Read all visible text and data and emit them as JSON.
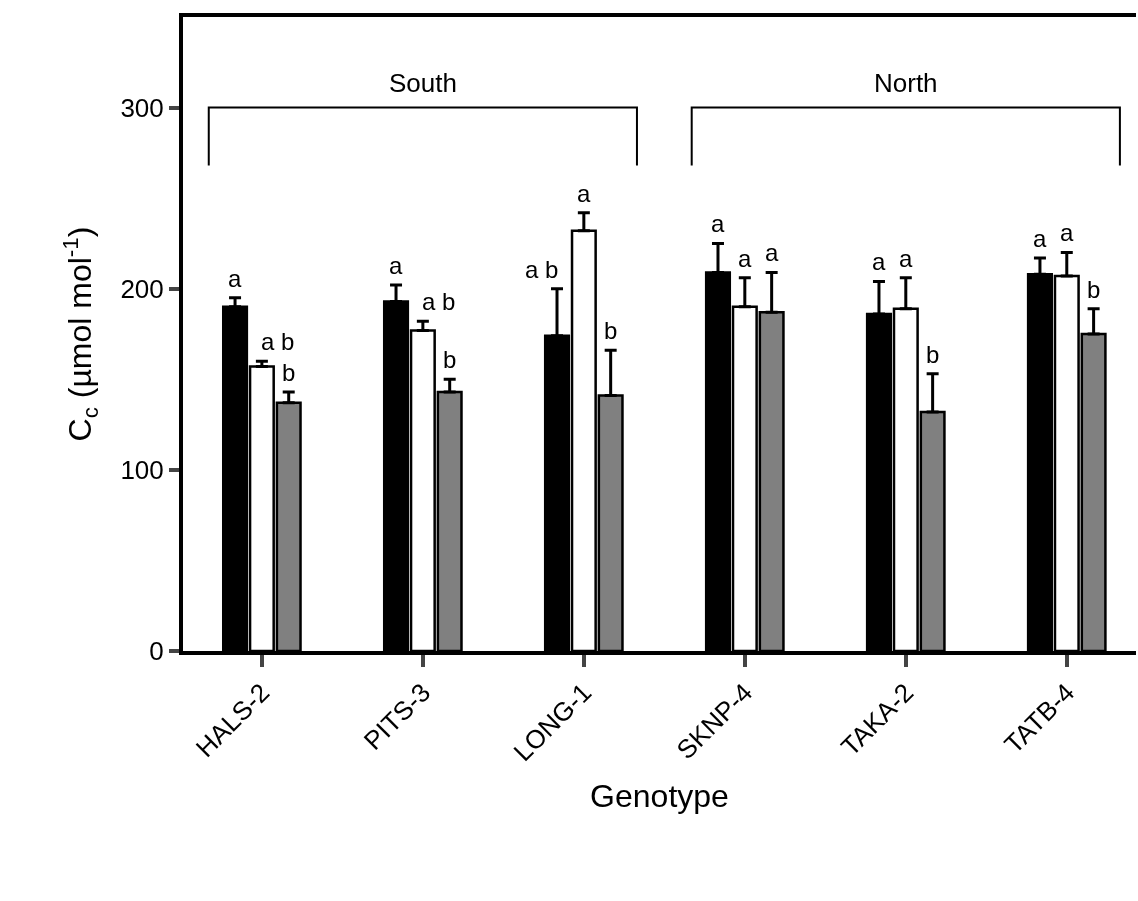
{
  "chart_data": {
    "type": "bar",
    "xlabel": "Genotype",
    "ylabel": "C$_{c}$ (µmol mol$^{-1}$)",
    "categories": [
      "HALS-2",
      "PITS-3",
      "LONG-1",
      "SKNP-4",
      "TAKA-2",
      "TATB-4"
    ],
    "series": [
      {
        "color": "#000000",
        "values": [
          190,
          193,
          174,
          209,
          186,
          208
        ],
        "errors": [
          [
            190,
            195
          ],
          [
            193,
            202
          ],
          [
            174,
            200
          ],
          [
            209,
            225
          ],
          [
            186,
            204
          ],
          [
            208,
            217
          ]
        ],
        "value_labels": [
          "a",
          "a",
          "a b",
          "a",
          "a",
          "a"
        ]
      },
      {
        "color": "#ffffff",
        "values": [
          157,
          177,
          232,
          190,
          189,
          207
        ],
        "errors": [
          [
            157,
            160
          ],
          [
            177,
            182
          ],
          [
            232,
            242
          ],
          [
            190,
            206
          ],
          [
            189,
            206
          ],
          [
            207,
            220
          ]
        ],
        "value_labels": [
          "a b",
          "a b",
          "a",
          "a",
          "a",
          "a"
        ]
      },
      {
        "color": "#808080",
        "values": [
          137,
          143,
          141,
          187,
          132,
          175
        ],
        "errors": [
          [
            137,
            143
          ],
          [
            143,
            150
          ],
          [
            141,
            166
          ],
          [
            187,
            209
          ],
          [
            132,
            153
          ],
          [
            175,
            189
          ]
        ],
        "value_labels": [
          "b",
          "b",
          "b",
          "a",
          "b",
          "b"
        ]
      }
    ],
    "ylim": [
      0,
      350
    ],
    "yticks": [
      0,
      100,
      200,
      300
    ],
    "grid": false,
    "legend": false,
    "annotations": [
      "South",
      "North"
    ]
  }
}
